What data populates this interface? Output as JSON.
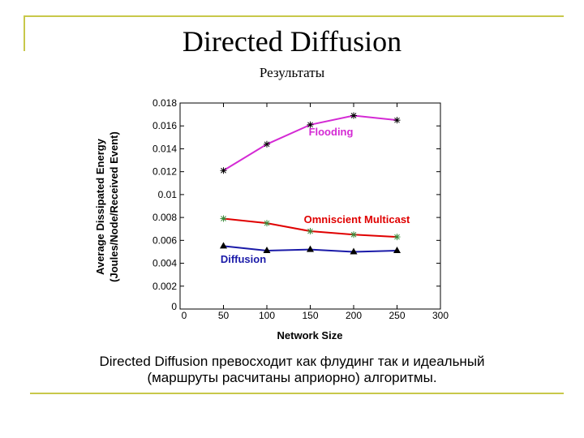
{
  "slide": {
    "title": "Directed Diffusion",
    "subtitle": "Результаты",
    "caption_line1": "Directed Diffusion превосходит как флудинг так и идеальный",
    "caption_line2": "(маршруты расчитаны априорно) алгоритмы."
  },
  "chart_data": {
    "type": "line",
    "xlabel": "Network Size",
    "ylabel_line1": "Average Dissipated Energy",
    "ylabel_line2": "(Joules/Node/Received Event)",
    "xlim": [
      0,
      300
    ],
    "ylim": [
      0,
      0.018
    ],
    "xticks": [
      0,
      50,
      100,
      150,
      200,
      250,
      300
    ],
    "yticks": [
      0,
      0.002,
      0.004,
      0.006,
      0.008,
      0.01,
      0.012,
      0.014,
      0.016,
      0.018
    ],
    "xtick_labels": [
      "0",
      "50",
      "100",
      "150",
      "200",
      "250",
      "300"
    ],
    "ytick_labels": [
      "0",
      "0.002",
      "0.004",
      "0.006",
      "0.008",
      "0.01",
      "0.012",
      "0.014",
      "0.016",
      "0.018"
    ],
    "grid": false,
    "series": [
      {
        "name": "Flooding",
        "color": "#d42ad4",
        "marker": "star",
        "x": [
          50,
          100,
          150,
          200,
          250
        ],
        "y": [
          0.0121,
          0.0144,
          0.0161,
          0.0169,
          0.0165
        ]
      },
      {
        "name": "Omniscient Multicast",
        "color": "#e00000",
        "marker": "star",
        "x": [
          50,
          100,
          150,
          200,
          250
        ],
        "y": [
          0.0079,
          0.0075,
          0.0068,
          0.0065,
          0.0063
        ]
      },
      {
        "name": "Diffusion",
        "color": "#1a1aa8",
        "marker": "triangle",
        "x": [
          50,
          100,
          150,
          200,
          250
        ],
        "y": [
          0.0055,
          0.0051,
          0.0052,
          0.005,
          0.0051
        ]
      }
    ]
  }
}
